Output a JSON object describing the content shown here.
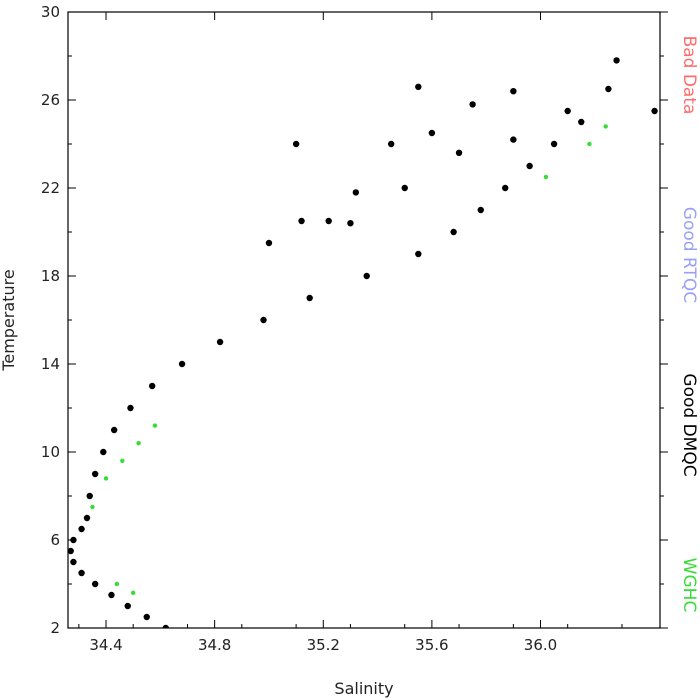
{
  "chart_data": {
    "type": "scatter",
    "xlabel": "Salinity",
    "ylabel": "Temperature",
    "xlim": [
      34.26,
      36.44
    ],
    "ylim": [
      2,
      30
    ],
    "x_ticks": [
      "34.4",
      "34.8",
      "35.2",
      "35.6",
      "36.0"
    ],
    "y_ticks": [
      "2",
      "6",
      "10",
      "14",
      "18",
      "22",
      "26",
      "30"
    ],
    "legend": [
      {
        "label": "Bad Data",
        "color": "#ff6b6b"
      },
      {
        "label": "Good RTQC",
        "color": "#9aa0f5"
      },
      {
        "label": "Good DMQC",
        "color": "#000000"
      },
      {
        "label": "WGHC",
        "color": "#33dd33"
      }
    ],
    "series": [
      {
        "name": "Good DMQC",
        "color": "#000000",
        "points": [
          [
            34.62,
            2.0
          ],
          [
            34.55,
            2.5
          ],
          [
            34.48,
            3.0
          ],
          [
            34.42,
            3.5
          ],
          [
            34.36,
            4.0
          ],
          [
            34.31,
            4.5
          ],
          [
            34.28,
            5.0
          ],
          [
            34.27,
            5.5
          ],
          [
            34.28,
            6.0
          ],
          [
            34.31,
            6.5
          ],
          [
            34.33,
            7.0
          ],
          [
            34.34,
            8.0
          ],
          [
            34.36,
            9.0
          ],
          [
            34.39,
            10.0
          ],
          [
            34.43,
            11.0
          ],
          [
            34.49,
            12.0
          ],
          [
            34.57,
            13.0
          ],
          [
            34.68,
            14.0
          ],
          [
            34.82,
            15.0
          ],
          [
            34.98,
            16.0
          ],
          [
            35.15,
            17.0
          ],
          [
            35.36,
            18.0
          ],
          [
            35.55,
            19.0
          ],
          [
            35.68,
            20.0
          ],
          [
            35.78,
            21.0
          ],
          [
            35.87,
            22.0
          ],
          [
            35.96,
            23.0
          ],
          [
            36.05,
            24.0
          ],
          [
            36.15,
            25.0
          ],
          [
            36.25,
            26.5
          ],
          [
            36.28,
            27.8
          ],
          [
            36.42,
            25.5
          ],
          [
            35.55,
            26.6
          ],
          [
            35.1,
            24.0
          ],
          [
            35.32,
            21.8
          ],
          [
            35.6,
            24.5
          ],
          [
            35.75,
            25.8
          ],
          [
            35.9,
            26.4
          ],
          [
            36.1,
            25.5
          ],
          [
            35.9,
            24.2
          ],
          [
            35.7,
            23.6
          ],
          [
            35.5,
            22.0
          ],
          [
            35.45,
            24.0
          ],
          [
            35.12,
            20.5
          ],
          [
            35.0,
            19.5
          ],
          [
            35.22,
            20.5
          ],
          [
            35.3,
            20.4
          ]
        ]
      },
      {
        "name": "WGHC",
        "color": "#33dd33",
        "points": [
          [
            34.35,
            7.5
          ],
          [
            34.4,
            8.8
          ],
          [
            34.46,
            9.6
          ],
          [
            34.52,
            10.4
          ],
          [
            34.58,
            11.2
          ],
          [
            34.44,
            4.0
          ],
          [
            34.5,
            3.6
          ],
          [
            36.02,
            22.5
          ],
          [
            36.18,
            24.0
          ],
          [
            36.24,
            24.8
          ]
        ]
      }
    ]
  }
}
